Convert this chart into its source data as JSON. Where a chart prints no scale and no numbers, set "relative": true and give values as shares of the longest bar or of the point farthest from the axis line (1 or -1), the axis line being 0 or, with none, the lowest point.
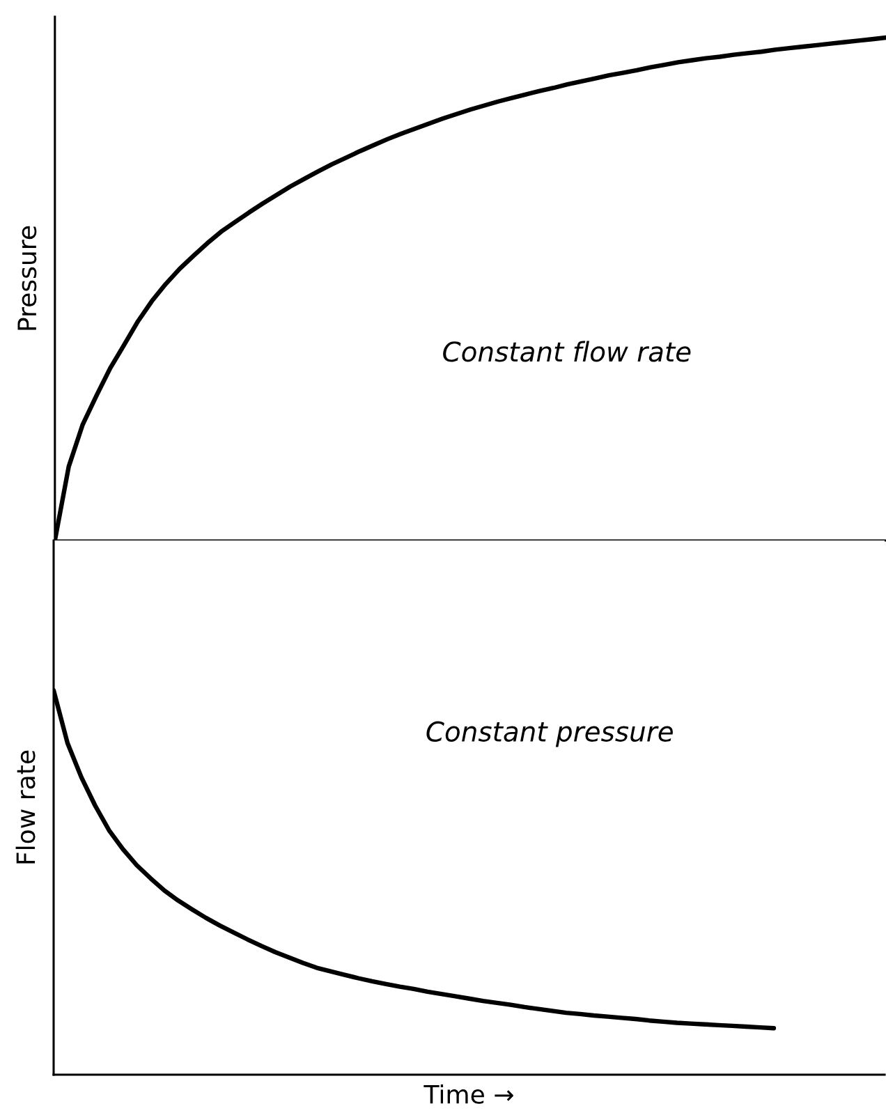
{
  "chart_data": [
    {
      "type": "line",
      "ylabel": "Pressure",
      "relative": true,
      "annotations": [
        "Constant flow rate"
      ],
      "categories": [
        null,
        null,
        null,
        null,
        null,
        null,
        null,
        null,
        null,
        null,
        null,
        null,
        null,
        null,
        null,
        null,
        null,
        null,
        null,
        null,
        null,
        null,
        null,
        null,
        null,
        null,
        null,
        null,
        null,
        null,
        null,
        null,
        null,
        null,
        null,
        null,
        null,
        null,
        null,
        null,
        null,
        null,
        null,
        null,
        null,
        null,
        null,
        null,
        null,
        null,
        null,
        null,
        null,
        null,
        null,
        null,
        null,
        null,
        null,
        null,
        null
      ],
      "series": [
        {
          "color": "#000000",
          "values": [
            0,
            0.147,
            0.23,
            0.288,
            0.343,
            0.389,
            0.436,
            0.476,
            0.51,
            0.54,
            0.566,
            0.591,
            0.614,
            0.633,
            0.652,
            0.67,
            0.687,
            0.704,
            0.719,
            0.734,
            0.748,
            0.761,
            0.774,
            0.786,
            0.798,
            0.809,
            0.819,
            0.829,
            0.839,
            0.848,
            0.857,
            0.865,
            0.873,
            0.88,
            0.887,
            0.894,
            0.9,
            0.907,
            0.913,
            0.919,
            0.925,
            0.93,
            0.935,
            0.941,
            0.946,
            0.951,
            0.955,
            0.959,
            0.962,
            0.966,
            0.969,
            0.972,
            0.976,
            0.979,
            0.982,
            0.985,
            0.988,
            0.991,
            0.994,
            0.997,
            1
          ]
        }
      ]
    },
    {
      "type": "line",
      "ylabel": "Flow rate",
      "xlabel": "Time →",
      "relative": true,
      "annotations": [
        "Constant pressure"
      ],
      "categories": [
        null,
        null,
        null,
        null,
        null,
        null,
        null,
        null,
        null,
        null,
        null,
        null,
        null,
        null,
        null,
        null,
        null,
        null,
        null,
        null,
        null,
        null,
        null,
        null,
        null,
        null,
        null,
        null,
        null,
        null,
        null,
        null,
        null,
        null,
        null,
        null,
        null,
        null,
        null,
        null,
        null,
        null,
        null,
        null,
        null,
        null,
        null,
        null,
        null,
        null,
        null,
        null,
        null,
        null,
        null,
        null,
        null,
        null,
        null,
        null,
        null
      ],
      "series": [
        {
          "color": "#000000",
          "values": [
            1,
            0.863,
            0.774,
            0.7,
            0.636,
            0.587,
            0.545,
            0.511,
            0.479,
            0.453,
            0.43,
            0.408,
            0.388,
            0.37,
            0.352,
            0.335,
            0.319,
            0.305,
            0.291,
            0.278,
            0.269,
            0.26,
            0.251,
            0.243,
            0.236,
            0.229,
            0.223,
            0.216,
            0.21,
            0.204,
            0.198,
            0.192,
            0.187,
            0.182,
            0.176,
            0.171,
            0.166,
            0.161,
            0.158,
            0.154,
            0.151,
            0.148,
            0.145,
            0.141,
            0.138,
            0.135,
            0.133,
            0.131,
            0.129,
            0.127,
            0.125,
            0.123,
            0.121,
            null,
            null,
            null,
            null,
            null,
            null,
            null,
            null
          ]
        }
      ]
    }
  ]
}
